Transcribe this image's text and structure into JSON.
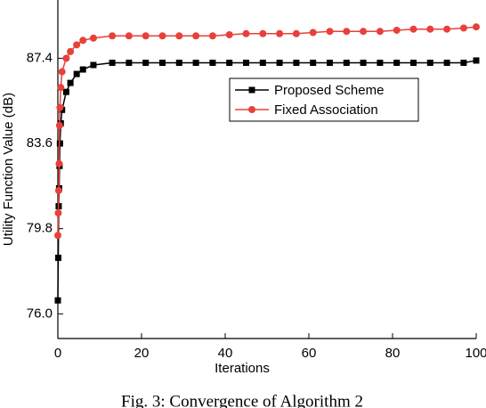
{
  "chart_data": {
    "type": "line",
    "x_label": "Iterations",
    "y_label": "Utility Function Value (dB)",
    "caption": "Fig. 3: Convergence of Algorithm 2",
    "x": [
      0,
      0.1,
      0.2,
      0.3,
      0.4,
      0.5,
      0.7,
      1,
      2,
      3,
      4.5,
      6,
      8.5,
      13,
      17,
      21,
      25,
      29,
      33,
      37,
      41,
      45,
      49,
      53,
      57,
      61,
      65,
      69,
      73,
      77,
      81,
      85,
      89,
      93,
      97,
      100
    ],
    "series": [
      {
        "name": "Proposed Scheme",
        "color": "#000000",
        "marker": "square",
        "values": [
          76.6,
          78.5,
          80.8,
          81.6,
          82.6,
          83.6,
          84.5,
          85.1,
          85.9,
          86.3,
          86.7,
          86.9,
          87.1,
          87.2,
          87.2,
          87.2,
          87.2,
          87.2,
          87.2,
          87.2,
          87.2,
          87.2,
          87.2,
          87.2,
          87.2,
          87.2,
          87.2,
          87.2,
          87.2,
          87.2,
          87.2,
          87.2,
          87.2,
          87.2,
          87.2,
          87.3
        ]
      },
      {
        "name": "Fixed Association",
        "color": "#e8403a",
        "marker": "circle",
        "values": [
          79.5,
          80.5,
          81.5,
          82.7,
          84.4,
          85.2,
          86.1,
          86.8,
          87.4,
          87.7,
          88.0,
          88.2,
          88.3,
          88.4,
          88.4,
          88.4,
          88.4,
          88.4,
          88.4,
          88.4,
          88.45,
          88.5,
          88.5,
          88.5,
          88.5,
          88.55,
          88.6,
          88.6,
          88.6,
          88.6,
          88.65,
          88.7,
          88.7,
          88.7,
          88.75,
          88.8
        ]
      }
    ],
    "xlim": [
      0,
      100
    ],
    "xticks": [
      0,
      20,
      40,
      60,
      80,
      100
    ],
    "ylim": [
      74.9,
      90.0
    ],
    "yticks": [
      {
        "value": 76.0,
        "label": "76.0"
      },
      {
        "value": 79.8,
        "label": "79.8"
      },
      {
        "value": 83.6,
        "label": "83.6"
      },
      {
        "value": 87.4,
        "label": "87.4"
      }
    ],
    "grid": false
  }
}
